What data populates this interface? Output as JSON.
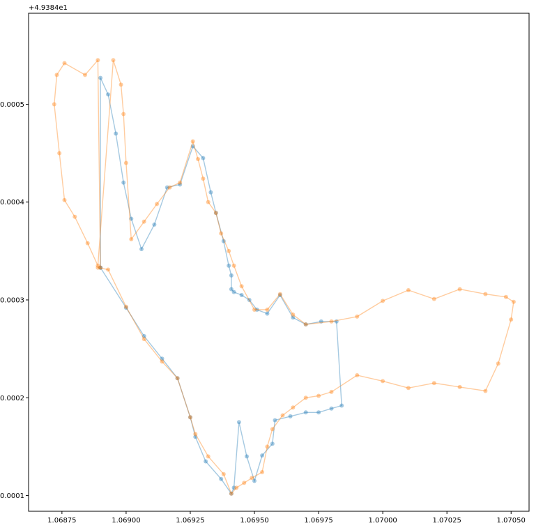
{
  "chart_data": {
    "type": "line",
    "title": "",
    "xlabel": "",
    "ylabel": "",
    "y_offset_label": "+4.9384e1",
    "xlim": [
      1.06862,
      1.07057
    ],
    "ylim": [
      8.4e-05,
      0.000593
    ],
    "grid": false,
    "legend": "none",
    "x_ticks": [
      {
        "value": 1.06875,
        "label": "1.06875"
      },
      {
        "value": 1.069,
        "label": "1.06900"
      },
      {
        "value": 1.06925,
        "label": "1.06925"
      },
      {
        "value": 1.0695,
        "label": "1.06950"
      },
      {
        "value": 1.06975,
        "label": "1.06975"
      },
      {
        "value": 1.07,
        "label": "1.07000"
      },
      {
        "value": 1.07025,
        "label": "1.07025"
      },
      {
        "value": 1.0705,
        "label": "1.07050"
      }
    ],
    "y_ticks": [
      {
        "value": 0.0001,
        "label": "0.0001"
      },
      {
        "value": 0.0002,
        "label": "0.0002"
      },
      {
        "value": 0.0003,
        "label": "0.0003"
      },
      {
        "value": 0.0004,
        "label": "0.0004"
      },
      {
        "value": 0.0005,
        "label": "0.0005"
      }
    ],
    "series": [
      {
        "color": "#1f77b4",
        "opacity": 0.4,
        "x": [
          1.0689,
          1.0689,
          1.06893,
          1.06896,
          1.06899,
          1.06902,
          1.06906,
          1.06911,
          1.06916,
          1.06921,
          1.06926,
          1.0693,
          1.06933,
          1.06935,
          1.06938,
          1.0694,
          1.06941,
          1.06941,
          1.06942,
          1.06945,
          1.06948,
          1.06951,
          1.06955,
          1.0696,
          1.06965,
          1.0697,
          1.06976,
          1.06982,
          1.06984,
          1.0698,
          1.06975,
          1.0697,
          1.06964,
          1.06958,
          1.06957,
          1.06953,
          1.0695,
          1.06947,
          1.06944,
          1.06942,
          1.06941,
          1.06937,
          1.06931,
          1.06927,
          1.06925,
          1.0692,
          1.06914,
          1.06907,
          1.069,
          1.0689
        ],
        "y": [
          0.000333,
          0.000527,
          0.00051,
          0.00047,
          0.00042,
          0.000383,
          0.000352,
          0.000377,
          0.000415,
          0.000418,
          0.000457,
          0.000445,
          0.00041,
          0.000389,
          0.00036,
          0.000335,
          0.000325,
          0.000311,
          0.000308,
          0.000305,
          0.0003,
          0.00029,
          0.000286,
          0.000305,
          0.000282,
          0.000275,
          0.000278,
          0.000278,
          0.000192,
          0.000189,
          0.000185,
          0.000185,
          0.000181,
          0.000177,
          0.000153,
          0.000141,
          0.000115,
          0.00014,
          0.000175,
          0.000108,
          0.000102,
          0.000117,
          0.000135,
          0.00016,
          0.00018,
          0.00022,
          0.00024,
          0.000263,
          0.000292,
          0.000333
        ]
      },
      {
        "color": "#ff7f0e",
        "opacity": 0.4,
        "x": [
          1.0689,
          1.06889,
          1.06884,
          1.06876,
          1.06873,
          1.06872,
          1.06874,
          1.06876,
          1.0688,
          1.06885,
          1.06889,
          1.06895,
          1.06898,
          1.06899,
          1.069,
          1.06902,
          1.06907,
          1.06912,
          1.06917,
          1.06921,
          1.06926,
          1.06928,
          1.0693,
          1.06932,
          1.06935,
          1.06937,
          1.0694,
          1.06942,
          1.06945,
          1.0695,
          1.06955,
          1.0696,
          1.06965,
          1.0697,
          1.0698,
          1.0699,
          1.07,
          1.0701,
          1.0702,
          1.0703,
          1.0704,
          1.07048,
          1.07051,
          1.0705,
          1.07045,
          1.0704,
          1.0703,
          1.0702,
          1.0701,
          1.07,
          1.0699,
          1.0698,
          1.06975,
          1.0697,
          1.06965,
          1.06961,
          1.06957,
          1.06955,
          1.06953,
          1.06949,
          1.06946,
          1.06943,
          1.06941,
          1.06938,
          1.06932,
          1.06927,
          1.06925,
          1.0692,
          1.06914,
          1.06907,
          1.069,
          1.06893,
          1.06889
        ],
        "y": [
          0.000333,
          0.000545,
          0.00053,
          0.000542,
          0.00053,
          0.0005,
          0.00045,
          0.000402,
          0.000385,
          0.000358,
          0.000335,
          0.000545,
          0.00052,
          0.00049,
          0.00044,
          0.000362,
          0.00038,
          0.000398,
          0.000415,
          0.00042,
          0.000462,
          0.000444,
          0.000424,
          0.0004,
          0.000389,
          0.000368,
          0.00035,
          0.000335,
          0.000314,
          0.00029,
          0.00029,
          0.000306,
          0.000285,
          0.000275,
          0.000278,
          0.000283,
          0.000299,
          0.00031,
          0.000301,
          0.000311,
          0.000306,
          0.000303,
          0.000298,
          0.00028,
          0.000235,
          0.000207,
          0.000211,
          0.000215,
          0.00021,
          0.000217,
          0.000223,
          0.000206,
          0.000202,
          0.0002,
          0.00019,
          0.000182,
          0.000168,
          0.00015,
          0.000124,
          0.000118,
          0.000113,
          0.000108,
          0.000102,
          0.000122,
          0.00014,
          0.000163,
          0.00018,
          0.00022,
          0.000237,
          0.00026,
          0.000293,
          0.000331,
          0.000333
        ]
      }
    ]
  }
}
